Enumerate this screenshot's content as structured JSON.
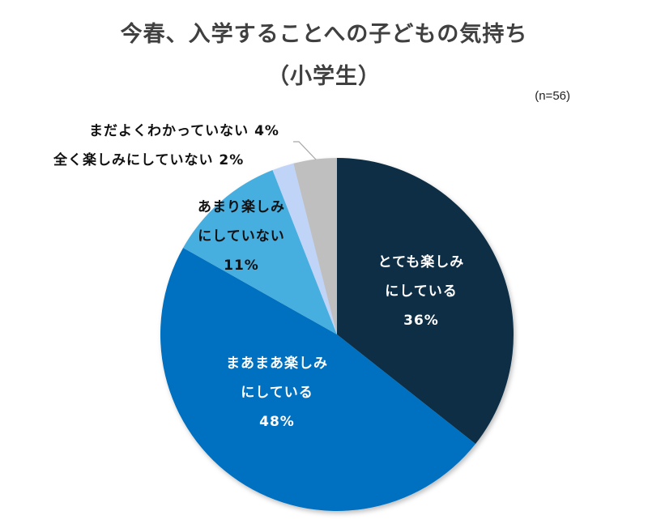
{
  "header": {
    "title": "今春、入学することへの子どもの気持ち",
    "subtitle": "（小学生）",
    "sample_size": "(n=56)"
  },
  "colors": {
    "very_looking_forward": "#0E2F44",
    "somewhat_looking_forward": "#0070C0",
    "not_really": "#46AEE0",
    "not_at_all": "#C0D4F8",
    "dont_know": "#BFBFBF",
    "leader_line": "#A6A6A6"
  },
  "labels": {
    "slice0": {
      "line1": "とても楽しみ",
      "line2": "にしている",
      "pct": "36%"
    },
    "slice1": {
      "line1": "まあまあ楽しみ",
      "line2": "にしている",
      "pct": "48%"
    },
    "slice2": {
      "line1": "あまり楽しみ",
      "line2": "にしていない",
      "pct": "11%"
    },
    "slice3": {
      "text": "全く楽しみにしていない 2%"
    },
    "slice4": {
      "text": "まだよくわかっていない 4%"
    }
  },
  "chart_data": {
    "type": "pie",
    "title": "今春、入学することへの子どもの気持ち（小学生）",
    "subtitle": "(n=56)",
    "start_angle": "12 o'clock, clockwise",
    "categories": [
      "とても楽しみにしている",
      "まあまあ楽しみにしている",
      "あまり楽しみにしていない",
      "全く楽しみにしていない",
      "まだよくわかっていない"
    ],
    "values": [
      36,
      48,
      11,
      2,
      4
    ],
    "unit": "%",
    "colors": [
      "#0E2F44",
      "#0070C0",
      "#46AEE0",
      "#C0D4F8",
      "#BFBFBF"
    ],
    "legend": "none (data labels on/beside slices)"
  }
}
